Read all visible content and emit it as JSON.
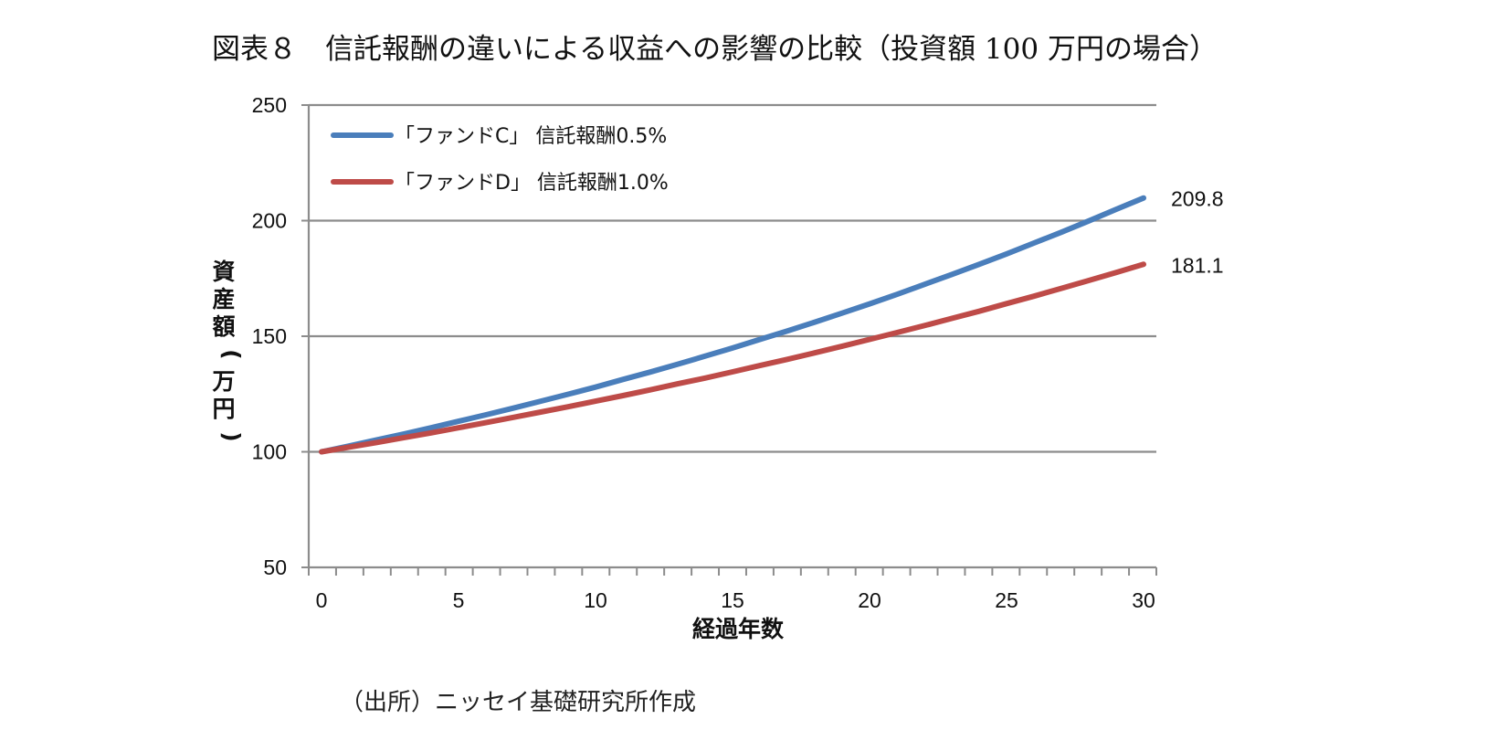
{
  "title": "図表８　信託報酬の違いによる収益への影響の比較（投資額 100 万円の場合）",
  "source": "（出所）ニッセイ基礎研究所作成",
  "chart_data": {
    "type": "line",
    "xlabel": "経過年数",
    "ylabel": "資産額(万円)",
    "xlim": [
      0,
      30
    ],
    "ylim": [
      50,
      250
    ],
    "xticks": [
      0,
      5,
      10,
      15,
      20,
      25,
      30
    ],
    "yticks": [
      50,
      100,
      150,
      200,
      250
    ],
    "grid": "horizontal",
    "legend_position": "top-left",
    "x": [
      0,
      1,
      2,
      3,
      4,
      5,
      6,
      7,
      8,
      9,
      10,
      11,
      12,
      13,
      14,
      15,
      16,
      17,
      18,
      19,
      20,
      21,
      22,
      23,
      24,
      25,
      26,
      27,
      28,
      29,
      30
    ],
    "series": [
      {
        "name": "「ファンドC」 信託報酬0.5%",
        "color": "#4a7ebb",
        "values": [
          100.0,
          102.5,
          105.1,
          107.7,
          110.4,
          113.2,
          116.0,
          118.9,
          121.9,
          124.9,
          128.0,
          131.3,
          134.5,
          137.9,
          141.4,
          144.9,
          148.6,
          152.3,
          156.1,
          160.0,
          164.0,
          168.1,
          172.4,
          176.7,
          181.1,
          185.6,
          190.3,
          195.0,
          199.9,
          204.9,
          209.8
        ],
        "end_label": "209.8"
      },
      {
        "name": "「ファンドD」 信託報酬1.0%",
        "color": "#be4b48",
        "values": [
          100.0,
          102.0,
          104.0,
          106.1,
          108.2,
          110.4,
          112.6,
          114.9,
          117.2,
          119.5,
          121.9,
          124.3,
          126.8,
          129.4,
          131.9,
          134.6,
          137.3,
          140.0,
          142.8,
          145.7,
          148.6,
          151.6,
          154.6,
          157.7,
          160.8,
          164.1,
          167.3,
          170.7,
          174.1,
          177.6,
          181.1
        ],
        "end_label": "181.1"
      }
    ]
  }
}
